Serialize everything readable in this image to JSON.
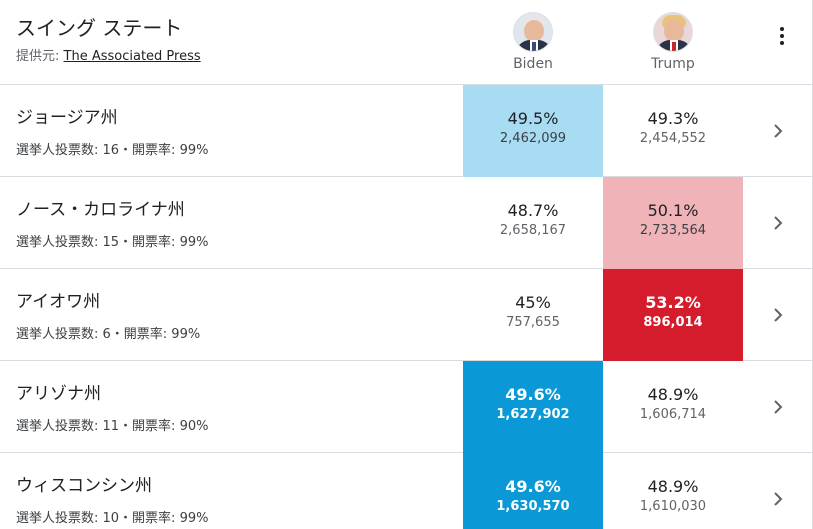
{
  "header": {
    "title": "スイング ステート",
    "source_label": "提供元: ",
    "source_link": "The Associated Press"
  },
  "candidates": {
    "biden": {
      "name": "Biden"
    },
    "trump": {
      "name": "Trump"
    }
  },
  "states": [
    {
      "name": "ジョージア州",
      "meta": "選挙人投票数: 16・開票率: 99%",
      "biden_pct": "49.5%",
      "biden_votes": "2,462,099",
      "trump_pct": "49.3%",
      "trump_votes": "2,454,552"
    },
    {
      "name": "ノース・カロライナ州",
      "meta": "選挙人投票数: 15・開票率: 99%",
      "biden_pct": "48.7%",
      "biden_votes": "2,658,167",
      "trump_pct": "50.1%",
      "trump_votes": "2,733,564"
    },
    {
      "name": "アイオワ州",
      "meta": "選挙人投票数: 6・開票率: 99%",
      "biden_pct": "45%",
      "biden_votes": "757,655",
      "trump_pct": "53.2%",
      "trump_votes": "896,014"
    },
    {
      "name": "アリゾナ州",
      "meta": "選挙人投票数: 11・開票率: 90%",
      "biden_pct": "49.6%",
      "biden_votes": "1,627,902",
      "trump_pct": "48.9%",
      "trump_votes": "1,606,714"
    },
    {
      "name": "ウィスコンシン州",
      "meta": "選挙人投票数: 10・開票率: 99%",
      "biden_pct": "49.6%",
      "biden_votes": "1,630,570",
      "trump_pct": "48.9%",
      "trump_votes": "1,610,030"
    }
  ],
  "colors": {
    "biden_leading_light": "#a8dcf3",
    "biden_called_dark": "#0b98d6",
    "trump_leading_light": "#f0b3b7",
    "trump_called_dark": "#d41c2c"
  },
  "icons": {
    "menu": "more-vert-icon",
    "row_arrow": "chevron-right-icon"
  }
}
